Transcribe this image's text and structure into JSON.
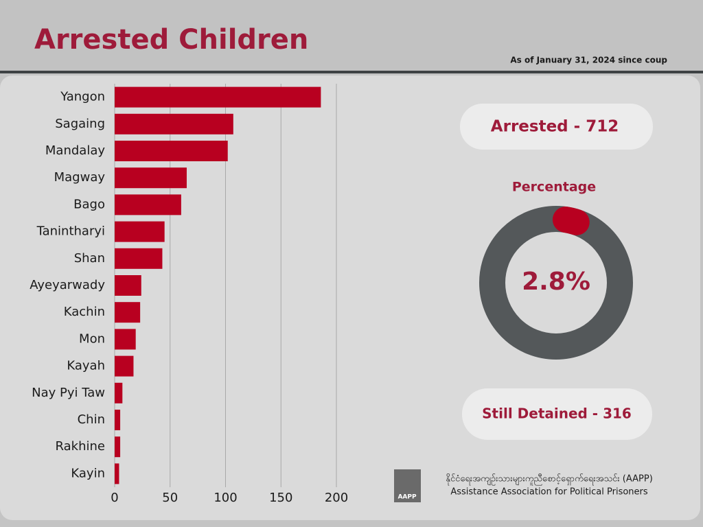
{
  "chart_data": {
    "type": "hbar",
    "title": "Arrested Children",
    "subtitle": "As of January 31, 2024 since coup",
    "categories": [
      "Yangon",
      "Sagaing",
      "Mandalay",
      "Magway",
      "Bago",
      "Tanintharyi",
      "Shan",
      "Ayeyarwady",
      "Kachin",
      "Mon",
      "Kayah",
      "Nay Pyi Taw",
      "Chin",
      "Rakhine",
      "Kayin"
    ],
    "values": [
      186,
      107,
      102,
      65,
      60,
      45,
      43,
      24,
      23,
      19,
      17,
      7,
      5,
      5,
      4
    ],
    "color": "#b80020",
    "xlim": [
      0,
      200
    ],
    "xticks": [
      0,
      50,
      100,
      150,
      200
    ],
    "grid": true
  },
  "stats": {
    "arrested": "Arrested - 712",
    "still_detained": "Still Detained - 316"
  },
  "donut": {
    "title": "Percentage",
    "value": 2.8,
    "value_label": "2.8%",
    "max": 100
  },
  "footer": {
    "org_myanmar": "နိုင်ငံရေးအကျဉ်းသားများကူညီစောင့်ရှောက်ရေးအသင်း (AAPP)",
    "org_english": "Assistance Association for Political Prisoners",
    "logo_text": "AAPP"
  }
}
